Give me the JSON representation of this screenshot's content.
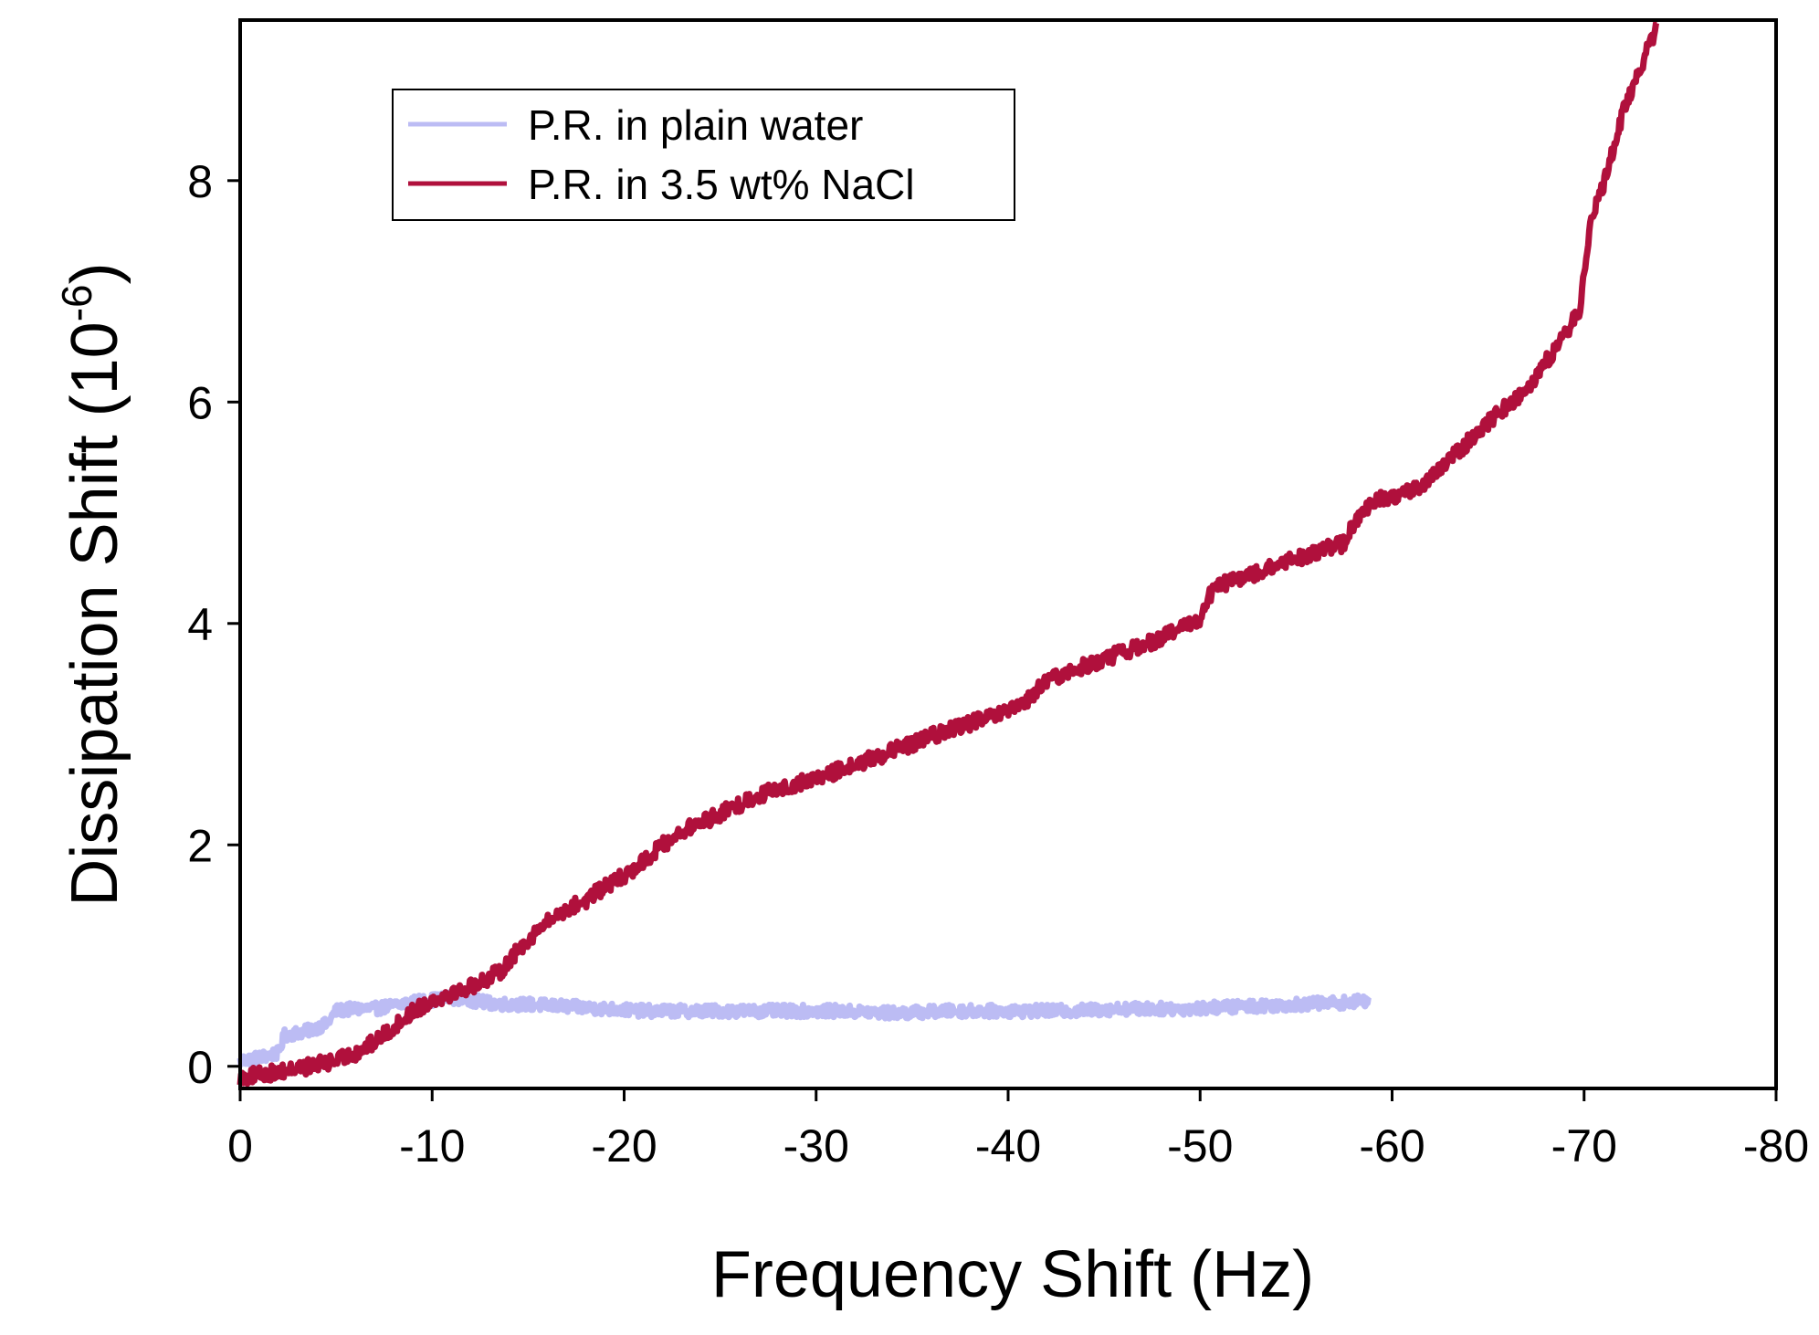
{
  "chart_data": {
    "type": "line",
    "title": "",
    "xlabel": "Frequency Shift (Hz)",
    "ylabel_main": "Dissipation Shift (10",
    "ylabel_exp": "-6",
    "ylabel_close": ")",
    "xlim": [
      0,
      -80
    ],
    "ylim": [
      -0.2,
      9.45
    ],
    "x_ticks": [
      0,
      -10,
      -20,
      -30,
      -40,
      -50,
      -60,
      -70,
      -80
    ],
    "x_tick_labels": [
      "0",
      "-10",
      "-20",
      "-30",
      "-40",
      "-50",
      "-60",
      "-70",
      "-80"
    ],
    "y_ticks": [
      0,
      2,
      4,
      6,
      8
    ],
    "y_tick_labels": [
      "0",
      "2",
      "4",
      "6",
      "8"
    ],
    "legend_position": "top-left",
    "series": [
      {
        "name": "P.R. in plain water",
        "color": "#bcbcf4",
        "noise": 0.055,
        "x": [
          0,
          -1,
          -2,
          -2.3,
          -3.5,
          -4.5,
          -5,
          -6,
          -7,
          -8,
          -9,
          -10,
          -11,
          -12,
          -13,
          -14,
          -15,
          -17,
          -19,
          -21,
          -23,
          -25,
          -28,
          -31,
          -34,
          -37,
          -40,
          -43,
          -46,
          -49,
          -52,
          -55,
          -58,
          -58.8
        ],
        "values": [
          0.05,
          0.08,
          0.12,
          0.28,
          0.32,
          0.38,
          0.5,
          0.52,
          0.52,
          0.55,
          0.58,
          0.6,
          0.62,
          0.6,
          0.57,
          0.56,
          0.56,
          0.54,
          0.52,
          0.5,
          0.5,
          0.5,
          0.5,
          0.5,
          0.48,
          0.5,
          0.5,
          0.5,
          0.52,
          0.52,
          0.54,
          0.56,
          0.58,
          0.6
        ]
      },
      {
        "name": "P.R. in 3.5 wt% NaCl",
        "color": "#b0103c",
        "noise": 0.07,
        "x": [
          0,
          -2,
          -3,
          -5,
          -6,
          -7,
          -8,
          -9,
          -10,
          -12,
          -13.5,
          -15,
          -16,
          -17,
          -18,
          -19,
          -20,
          -21,
          -22,
          -23,
          -25,
          -27,
          -28,
          -30,
          -32,
          -34,
          -36,
          -38,
          -40,
          -41,
          -42,
          -43,
          -45,
          -47,
          -49,
          -50,
          -50.5,
          -51,
          -52,
          -54,
          -56,
          -57.5,
          -58,
          -59,
          -61,
          -62,
          -63,
          -64,
          -65,
          -67,
          -69,
          -69.8,
          -70,
          -70.3,
          -71,
          -72,
          -73,
          -73.8
        ],
        "values": [
          -0.1,
          -0.05,
          -0.02,
          0.05,
          0.12,
          0.22,
          0.35,
          0.5,
          0.6,
          0.72,
          0.85,
          1.15,
          1.3,
          1.42,
          1.5,
          1.62,
          1.72,
          1.85,
          2.0,
          2.12,
          2.28,
          2.45,
          2.5,
          2.6,
          2.72,
          2.85,
          2.98,
          3.1,
          3.2,
          3.3,
          3.48,
          3.55,
          3.68,
          3.8,
          3.95,
          4.05,
          4.25,
          4.35,
          4.4,
          4.52,
          4.65,
          4.72,
          4.9,
          5.1,
          5.2,
          5.3,
          5.48,
          5.65,
          5.82,
          6.12,
          6.6,
          6.85,
          7.2,
          7.6,
          7.95,
          8.6,
          9.05,
          9.4
        ]
      }
    ]
  }
}
